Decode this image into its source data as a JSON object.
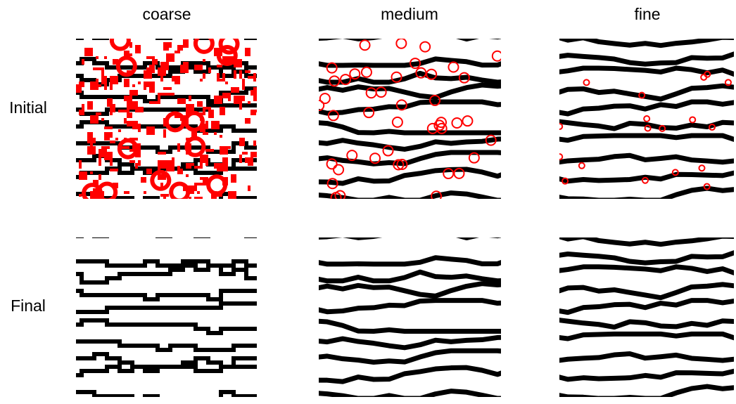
{
  "columns": [
    "coarse",
    "medium",
    "fine"
  ],
  "rows": [
    "Initial",
    "Final"
  ]
}
